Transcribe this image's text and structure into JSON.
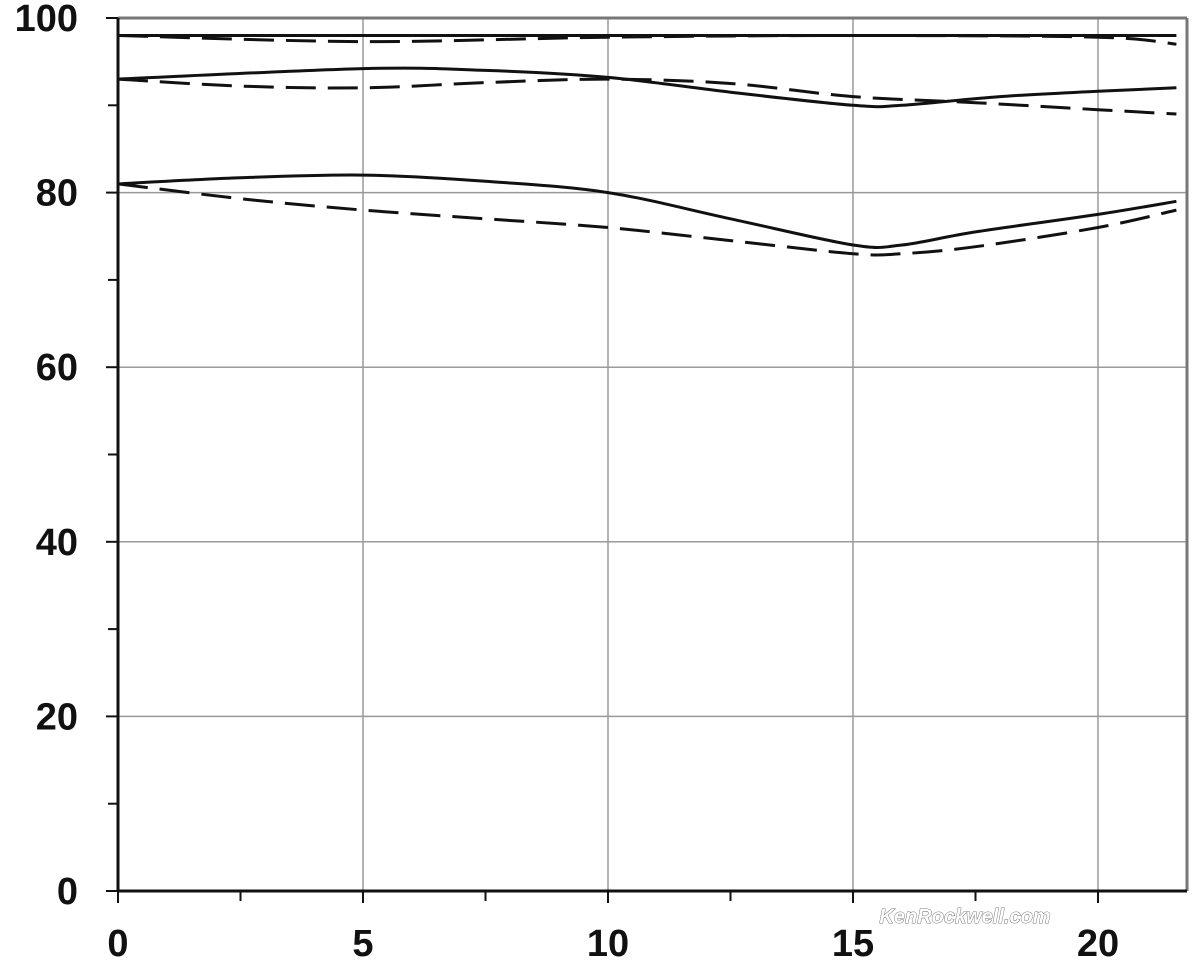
{
  "chart_data": {
    "type": "line",
    "title": "",
    "xlabel": "",
    "ylabel": "",
    "xlim": [
      0,
      21.6
    ],
    "ylim": [
      0,
      100
    ],
    "x_ticks": [
      0,
      5,
      10,
      15,
      20
    ],
    "y_ticks": [
      0,
      20,
      40,
      60,
      80,
      100
    ],
    "x_tick_labels": [
      "0",
      "5",
      "10",
      "15",
      "20"
    ],
    "y_tick_labels": [
      "0",
      "20",
      "40",
      "60",
      "80",
      "100"
    ],
    "grid": true,
    "legend": "none",
    "colors": {
      "line": "#111111",
      "grid": "#9a9a9a",
      "frame": "#777777",
      "axis": "#111111"
    },
    "series": [
      {
        "style": "solid",
        "x": [
          0,
          5,
          10,
          15,
          20,
          21.6
        ],
        "y": [
          98,
          98,
          98,
          98,
          98,
          98
        ]
      },
      {
        "style": "dashed",
        "x": [
          0,
          5,
          10,
          15,
          20,
          21.6
        ],
        "y": [
          98,
          97.3,
          97.8,
          98,
          97.8,
          97
        ]
      },
      {
        "style": "solid",
        "x": [
          0,
          5,
          7.5,
          10,
          12.5,
          15,
          16,
          18,
          20,
          21.6
        ],
        "y": [
          93,
          94.2,
          94,
          93.2,
          91.5,
          90,
          90,
          91,
          91.6,
          92
        ]
      },
      {
        "style": "dashed",
        "x": [
          0,
          2.5,
          5,
          7.5,
          10,
          12.5,
          15,
          17.5,
          20,
          21.6
        ],
        "y": [
          93,
          92.2,
          92,
          92.6,
          93,
          92.5,
          91,
          90.3,
          89.5,
          89
        ]
      },
      {
        "style": "solid",
        "x": [
          0,
          2.5,
          5,
          7.5,
          10,
          12.5,
          15,
          16,
          17.5,
          20,
          21.6
        ],
        "y": [
          81,
          81.7,
          82,
          81.3,
          80,
          77,
          74,
          74,
          75.5,
          77.5,
          79
        ]
      },
      {
        "style": "dashed",
        "x": [
          0,
          2.5,
          5,
          7.5,
          10,
          12.5,
          15,
          16,
          17.5,
          20,
          21.6
        ],
        "y": [
          81,
          79.3,
          78,
          77,
          76,
          74.5,
          73,
          73,
          73.8,
          76,
          78
        ]
      }
    ]
  },
  "watermark": {
    "text": "KenRockwell.com"
  }
}
